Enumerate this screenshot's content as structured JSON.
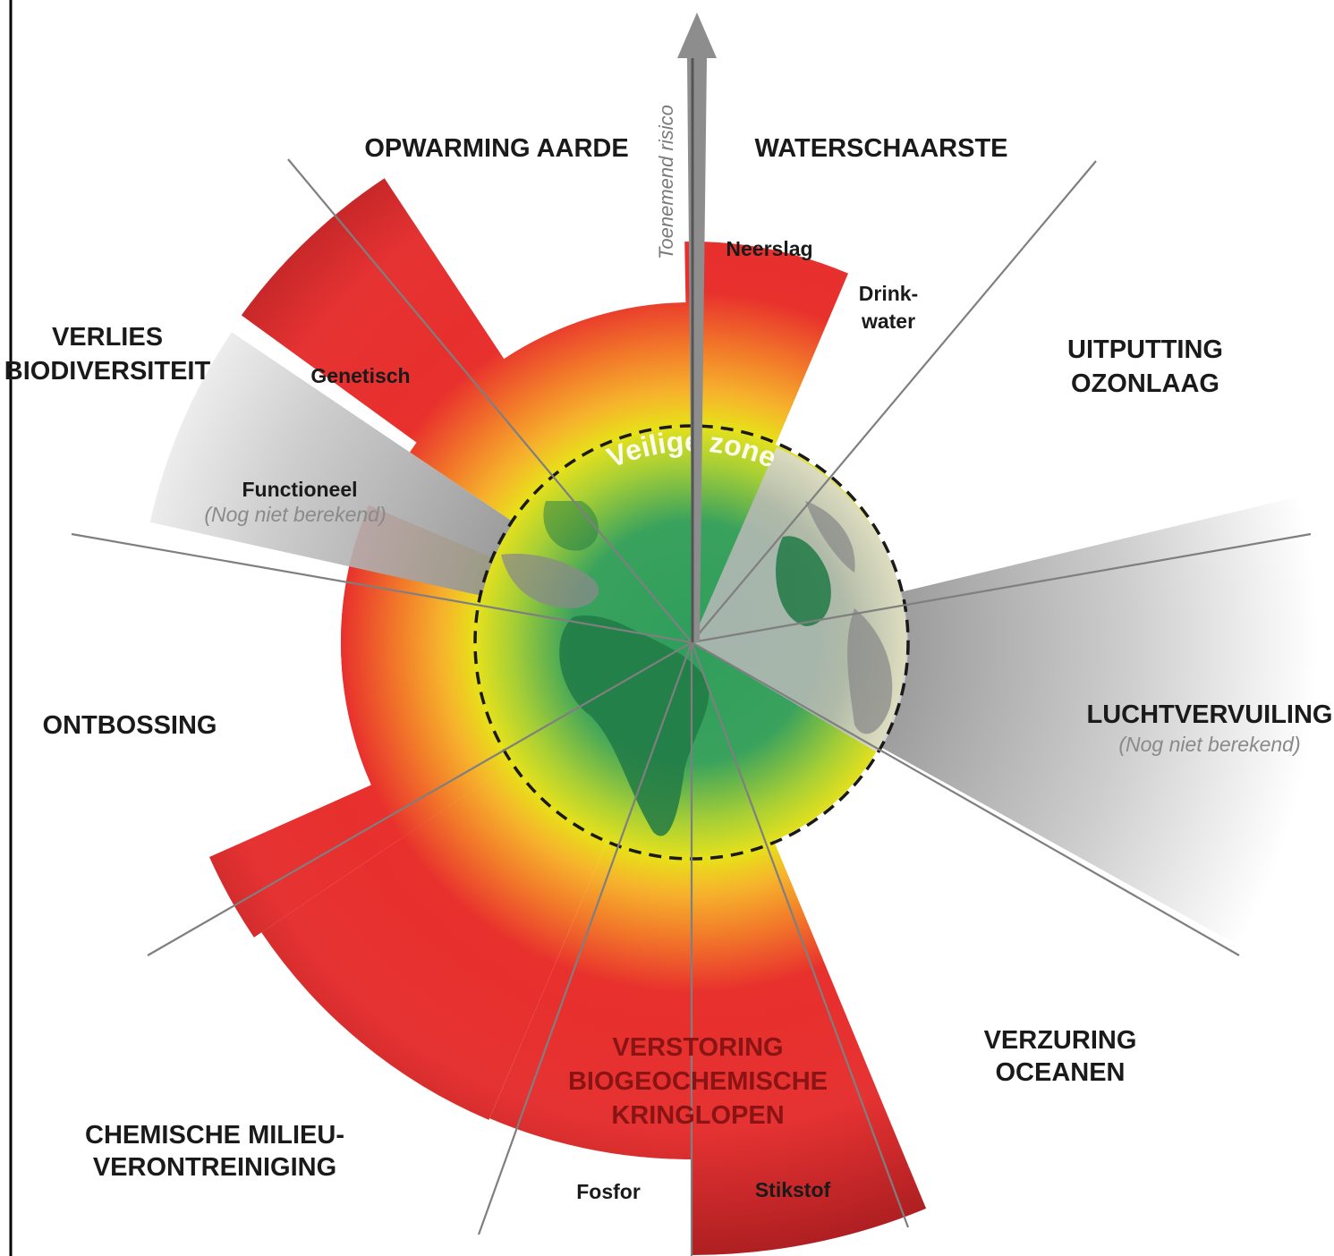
{
  "labels": {
    "climate": "OPWARMING AARDE",
    "water": "WATERSCHAARSTE",
    "ozone1": "UITPUTTING",
    "ozone2": "OZONLAAG",
    "air": "LUCHTVERVUILING",
    "air_note": "(Nog niet berekend)",
    "ocean1": "VERZURING",
    "ocean2": "OCEANEN",
    "bio1": "VERSTORING",
    "bio2": "BIOGEOCHEMISCHE",
    "bio3": "KRINGLOPEN",
    "chem1": "CHEMISCHE MILIEU-",
    "chem2": "VERONTREINIGING",
    "forest": "ONTBOSSING",
    "biod1": "VERLIES",
    "biod2": "BIODIVERSITEIT",
    "genetic": "Genetisch",
    "functional": "Functioneel",
    "functional_note": "(Nog niet berekend)",
    "precip": "Neerslag",
    "drink1": "Drink-",
    "drink2": "water",
    "phosphor": "Fosfor",
    "nitrogen": "Stikstof",
    "risk_axis": "Toenemend risico",
    "safe_zone": "Veilige zone"
  },
  "colors": {
    "safe_green": "#2f9e5c",
    "threshold_yellow": "#e6e617",
    "mid_orange": "#f39a2a",
    "danger_red": "#e8302d",
    "deep_red": "#a91d20",
    "not_calculated_grey": "#9a9a9a"
  }
}
